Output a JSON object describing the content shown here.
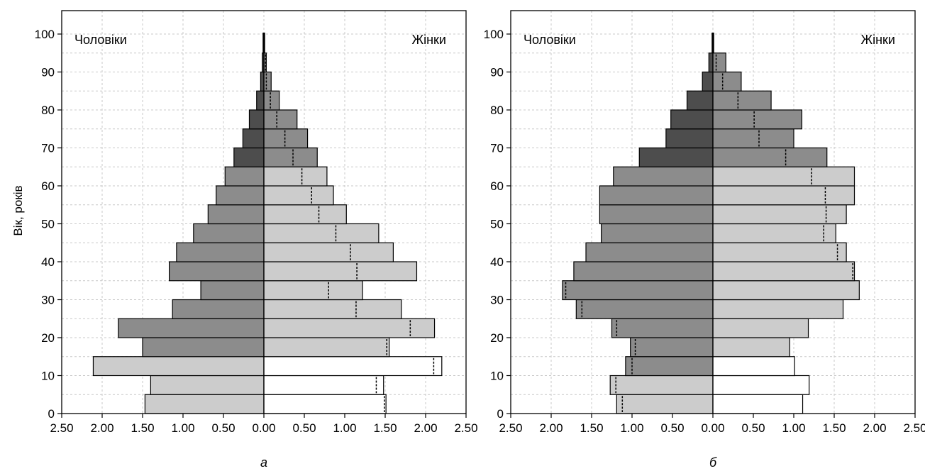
{
  "colors": {
    "white": "#ffffff",
    "light": "#cccccc",
    "medium": "#8c8c8c",
    "dark": "#4d4d4d",
    "grid": "#c8c8c8"
  },
  "chart_data": [
    {
      "type": "bar",
      "orientation": "horizontal",
      "subtype": "population-pyramid",
      "caption": "а",
      "ylabel": "Вік, років",
      "left_label": "Чоловіки",
      "right_label": "Жінки",
      "xlim": [
        -2.5,
        2.5
      ],
      "ylim": [
        0,
        100
      ],
      "x_ticks": [
        "2.50",
        "2.00",
        "1.50",
        "1.00",
        "0.50",
        "0.00",
        "0.50",
        "1.00",
        "1.50",
        "2.00",
        "2.50"
      ],
      "y_ticks": [
        "0",
        "10",
        "20",
        "30",
        "40",
        "50",
        "60",
        "70",
        "80",
        "90",
        "100"
      ],
      "age_groups": [
        "0-4",
        "5-9",
        "10-14",
        "15-19",
        "20-24",
        "25-29",
        "30-34",
        "35-39",
        "40-44",
        "45-49",
        "50-54",
        "55-59",
        "60-64",
        "65-69",
        "70-74",
        "75-79",
        "80-84",
        "85-89",
        "90-94",
        "95-99"
      ],
      "men": [
        1.47,
        1.4,
        2.11,
        1.5,
        1.8,
        1.13,
        0.78,
        1.17,
        1.08,
        0.87,
        0.69,
        0.59,
        0.48,
        0.37,
        0.26,
        0.18,
        0.09,
        0.04,
        0.02,
        0.0
      ],
      "women": [
        1.51,
        1.48,
        2.2,
        1.55,
        2.11,
        1.7,
        1.22,
        1.89,
        1.6,
        1.42,
        1.02,
        0.86,
        0.78,
        0.66,
        0.54,
        0.41,
        0.19,
        0.09,
        0.03,
        0.0
      ],
      "men_fill": [
        "light",
        "light",
        "light",
        "medium",
        "medium",
        "medium",
        "medium",
        "medium",
        "medium",
        "medium",
        "medium",
        "medium",
        "medium",
        "dark",
        "dark",
        "dark",
        "dark",
        "dark",
        "dark",
        "dark"
      ],
      "women_fill": [
        "white",
        "white",
        "white",
        "light",
        "light",
        "light",
        "light",
        "light",
        "light",
        "light",
        "light",
        "light",
        "light",
        "medium",
        "medium",
        "medium",
        "medium",
        "medium",
        "medium",
        "medium"
      ],
      "women_reference": [
        1.49,
        1.39,
        2.1,
        1.52,
        1.81,
        1.14,
        0.8,
        1.15,
        1.07,
        0.89,
        0.68,
        0.59,
        0.47,
        0.36,
        0.26,
        0.16,
        0.08,
        0.03,
        0.02,
        null
      ],
      "men_reference": [
        null,
        null,
        null,
        null,
        null,
        null,
        null,
        null,
        null,
        null,
        null,
        null,
        null,
        null,
        null,
        null,
        null,
        null,
        null,
        null
      ]
    },
    {
      "type": "bar",
      "orientation": "horizontal",
      "subtype": "population-pyramid",
      "caption": "б",
      "ylabel": "",
      "left_label": "Чоловіки",
      "right_label": "Жінки",
      "xlim": [
        -2.5,
        2.5
      ],
      "ylim": [
        0,
        100
      ],
      "x_ticks": [
        "2.50",
        "2.00",
        "1.50",
        "1.00",
        "0.50",
        "0.00",
        "0.50",
        "1.00",
        "1.50",
        "2.00",
        "2.50"
      ],
      "y_ticks": [
        "0",
        "10",
        "20",
        "30",
        "40",
        "50",
        "60",
        "70",
        "80",
        "90",
        "100"
      ],
      "age_groups": [
        "0-4",
        "5-9",
        "10-14",
        "15-19",
        "20-24",
        "25-29",
        "30-34",
        "35-39",
        "40-44",
        "45-49",
        "50-54",
        "55-59",
        "60-64",
        "65-69",
        "70-74",
        "75-79",
        "80-84",
        "85-89",
        "90-94",
        "95-99"
      ],
      "men": [
        1.19,
        1.27,
        1.08,
        1.02,
        1.25,
        1.69,
        1.86,
        1.72,
        1.57,
        1.38,
        1.4,
        1.4,
        1.23,
        0.91,
        0.58,
        0.52,
        0.32,
        0.13,
        0.05,
        0.0
      ],
      "women": [
        1.11,
        1.19,
        1.01,
        0.95,
        1.18,
        1.61,
        1.81,
        1.75,
        1.65,
        1.52,
        1.65,
        1.75,
        1.75,
        1.41,
        1.0,
        1.1,
        0.72,
        0.35,
        0.16,
        0.0
      ],
      "men_fill": [
        "light",
        "light",
        "medium",
        "medium",
        "medium",
        "medium",
        "medium",
        "medium",
        "medium",
        "medium",
        "medium",
        "medium",
        "medium",
        "dark",
        "dark",
        "dark",
        "dark",
        "dark",
        "dark",
        "dark"
      ],
      "women_fill": [
        "white",
        "white",
        "white",
        "light",
        "light",
        "light",
        "light",
        "light",
        "light",
        "light",
        "light",
        "light",
        "light",
        "medium",
        "medium",
        "medium",
        "medium",
        "medium",
        "medium",
        "medium"
      ],
      "men_reference": [
        1.12,
        1.2,
        1.0,
        0.96,
        1.19,
        1.62,
        1.82,
        null,
        null,
        null,
        null,
        null,
        null,
        null,
        null,
        null,
        null,
        null,
        null,
        null
      ],
      "women_reference": [
        null,
        null,
        null,
        null,
        null,
        null,
        null,
        1.73,
        1.54,
        1.37,
        1.4,
        1.39,
        1.22,
        0.9,
        0.57,
        0.51,
        0.31,
        0.12,
        0.04,
        null
      ]
    }
  ]
}
